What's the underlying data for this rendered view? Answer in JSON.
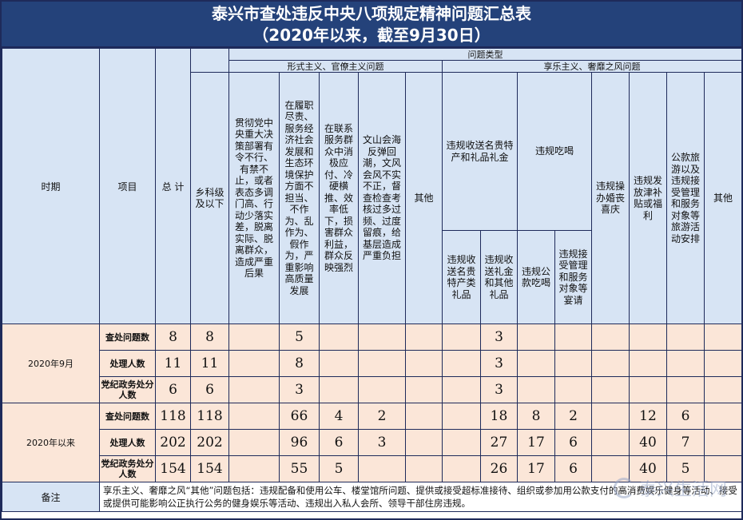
{
  "title_line1": "泰兴市查处违反中央八项规定精神问题汇总表",
  "title_line2": "（2020年以来，截至9月30日）",
  "headers": {
    "period": "时期",
    "item": "项目",
    "total": "总 计",
    "township": "乡科级及以下",
    "problem_type": "问题类型",
    "formalism": "形式主义、官僚主义问题",
    "hedonism": "享乐主义、奢靡之风问题",
    "f1": "贯彻党中央重大决策部署有令不行、有禁不止，或者表态多调门高、行动少落实差，脱离实际、脱离群众，造成严重后果",
    "f2": "在履职尽责、服务经济社会发展和生态环境保护方面不担当、不作为、乱作为、假作为，严重影响高质量发展",
    "f3": "在联系服务群众中消极应付、冷硬横推、效率低下，损害群众利益，群众反映强烈",
    "f4": "文山会海反弹回潮，文风会风不实不正，督查检查考核过多过频、过度留痕，给基层造成严重负担",
    "f5": "其他",
    "h1": "违规收送名贵特产和礼品礼金",
    "h1a": "违规收送名贵特产类礼品",
    "h1b": "违规收送礼金和其他礼品",
    "h2": "违规吃喝",
    "h2a": "违规公款吃喝",
    "h2b": "违规接受管理和服务对象等宴请",
    "h3": "违规操办婚丧喜庆",
    "h4": "违规发放津补贴或福利",
    "h5": "公款旅游以及违规接受管理和服务对象等旅游活动安排",
    "h6": "其他"
  },
  "groups": [
    {
      "period": "2020年9月",
      "rows": [
        {
          "label": "查处问题数",
          "cells": [
            "8",
            "8",
            "",
            "5",
            "",
            "",
            "",
            "",
            "3",
            "",
            "",
            "",
            "",
            "",
            ""
          ]
        },
        {
          "label": "处理人数",
          "cells": [
            "11",
            "11",
            "",
            "8",
            "",
            "",
            "",
            "",
            "3",
            "",
            "",
            "",
            "",
            "",
            ""
          ]
        },
        {
          "label": "党纪政务处分人数",
          "cells": [
            "6",
            "6",
            "",
            "3",
            "",
            "",
            "",
            "",
            "3",
            "",
            "",
            "",
            "",
            "",
            ""
          ]
        }
      ]
    },
    {
      "period": "2020年以来",
      "rows": [
        {
          "label": "查处问题数",
          "cells": [
            "118",
            "118",
            "",
            "66",
            "4",
            "2",
            "",
            "",
            "18",
            "8",
            "2",
            "",
            "12",
            "6",
            ""
          ]
        },
        {
          "label": "处理人数",
          "cells": [
            "202",
            "202",
            "",
            "96",
            "6",
            "3",
            "",
            "",
            "27",
            "17",
            "6",
            "",
            "40",
            "7",
            ""
          ]
        },
        {
          "label": "党纪政务处分人数",
          "cells": [
            "154",
            "154",
            "",
            "55",
            "5",
            "",
            "",
            "",
            "26",
            "17",
            "6",
            "",
            "40",
            "5",
            ""
          ]
        }
      ]
    }
  ],
  "note_label": "备注",
  "note_text": "享乐主义、奢靡之风“其他”问题包括：违规配备和使用公车、楼堂馆所问题、提供或接受超标准接待、组织或参加用公款支付的高消费娱乐健身等活动、接受或提供可能影响公正执行公务的健身娱乐等活动、违规出入私人会所、领导干部住房违规。",
  "watermark_text": "泰兴生活网"
}
